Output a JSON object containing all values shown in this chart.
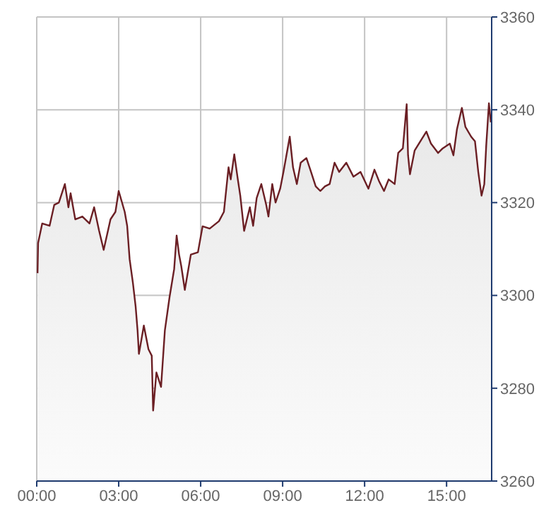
{
  "chart_data": {
    "type": "area",
    "xlim": [
      0,
      16.65
    ],
    "xticks": [
      {
        "value": 0,
        "label": "00:00"
      },
      {
        "value": 3,
        "label": "03:00"
      },
      {
        "value": 6,
        "label": "06:00"
      },
      {
        "value": 9,
        "label": "09:00"
      },
      {
        "value": 12,
        "label": "12:00"
      },
      {
        "value": 15,
        "label": "15:00"
      }
    ],
    "ylim": [
      3260,
      3360
    ],
    "yticks": [
      3260,
      3280,
      3300,
      3320,
      3340,
      3360
    ],
    "grid": true,
    "legend": false,
    "x": [
      0.03,
      0.05,
      0.2,
      0.47,
      0.64,
      0.81,
      1.03,
      1.16,
      1.24,
      1.41,
      1.67,
      1.93,
      2.1,
      2.28,
      2.45,
      2.7,
      2.88,
      3.0,
      3.22,
      3.31,
      3.4,
      3.52,
      3.62,
      3.69,
      3.74,
      3.92,
      4.09,
      4.21,
      4.26,
      4.38,
      4.55,
      4.69,
      4.86,
      5.03,
      5.12,
      5.21,
      5.29,
      5.42,
      5.64,
      5.9,
      6.07,
      6.33,
      6.67,
      6.85,
      7.02,
      7.1,
      7.23,
      7.36,
      7.45,
      7.59,
      7.8,
      7.92,
      8.05,
      8.22,
      8.4,
      8.48,
      8.62,
      8.74,
      8.91,
      9.03,
      9.26,
      9.38,
      9.52,
      9.66,
      9.87,
      10.04,
      10.21,
      10.38,
      10.55,
      10.72,
      10.9,
      11.07,
      11.33,
      11.59,
      11.85,
      12.14,
      12.36,
      12.53,
      12.71,
      12.88,
      13.1,
      13.23,
      13.4,
      13.54,
      13.59,
      13.66,
      13.83,
      14.09,
      14.26,
      14.43,
      14.69,
      14.86,
      15.12,
      15.25,
      15.38,
      15.56,
      15.69,
      15.9,
      16.04,
      16.16,
      16.28,
      16.38,
      16.45,
      16.55,
      16.62
    ],
    "series": [
      {
        "color": "#6b1f24",
        "values": [
          3304.8,
          3311.3,
          3315.5,
          3315,
          3319.5,
          3320,
          3324,
          3319,
          3322,
          3316.4,
          3317,
          3315.5,
          3319,
          3314,
          3309.8,
          3316.4,
          3318,
          3322.5,
          3318,
          3315,
          3307.8,
          3302.7,
          3297.6,
          3292.5,
          3287.4,
          3293.5,
          3288.4,
          3287,
          3275.2,
          3283.4,
          3280.3,
          3292.5,
          3299.6,
          3305.7,
          3312.9,
          3308.8,
          3306.3,
          3301.2,
          3308.8,
          3309.3,
          3314.9,
          3314.4,
          3316,
          3318,
          3327.6,
          3325,
          3330.4,
          3325,
          3321.5,
          3313.9,
          3319,
          3315,
          3321,
          3324,
          3319.5,
          3317,
          3324,
          3320,
          3323,
          3326.6,
          3334.2,
          3327.6,
          3324,
          3328.6,
          3329.6,
          3326.6,
          3323.5,
          3322.5,
          3323.5,
          3324,
          3328.6,
          3326.6,
          3328.6,
          3325.6,
          3326.6,
          3323,
          3327.1,
          3324.6,
          3322.5,
          3325,
          3324,
          3330.7,
          3331.7,
          3341.2,
          3330.2,
          3326.1,
          3331.2,
          3333.7,
          3335.3,
          3332.7,
          3330.7,
          3331.7,
          3332.7,
          3330.2,
          3335.8,
          3340.4,
          3336.3,
          3334.2,
          3333.2,
          3326.6,
          3321.5,
          3324,
          3332.2,
          3341.4,
          3337.3
        ]
      }
    ]
  }
}
